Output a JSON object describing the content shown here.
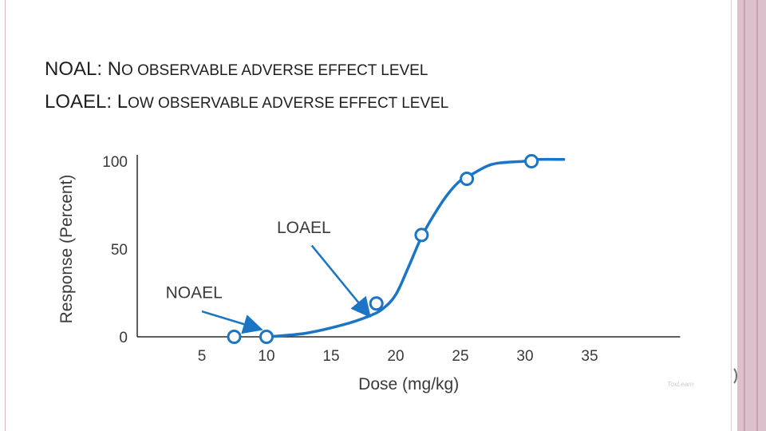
{
  "slide": {
    "line1": {
      "lead": "NOAL: N",
      "rest": "o observable adverse effect level"
    },
    "line2": {
      "lead": "LOAEL: L",
      "rest": "ow observable adverse effect level"
    }
  },
  "chart_data": {
    "type": "line",
    "title": "",
    "xlabel": "Dose (mg/kg)",
    "ylabel": "Response (Percent)",
    "xlim": [
      0,
      42
    ],
    "ylim": [
      0,
      100
    ],
    "x_ticks": [
      5,
      10,
      15,
      20,
      25,
      30,
      35
    ],
    "y_ticks": [
      0,
      50,
      100
    ],
    "curve": [
      [
        10,
        0
      ],
      [
        13,
        2
      ],
      [
        16,
        7
      ],
      [
        18,
        12
      ],
      [
        19,
        16
      ],
      [
        20,
        24
      ],
      [
        21,
        40
      ],
      [
        22,
        57
      ],
      [
        23,
        70
      ],
      [
        24,
        81
      ],
      [
        25,
        89
      ],
      [
        26,
        93
      ],
      [
        27,
        97
      ],
      [
        28,
        99
      ],
      [
        30,
        100
      ],
      [
        31,
        101
      ],
      [
        33,
        101
      ]
    ],
    "points": [
      {
        "x": 7.5,
        "y": 0
      },
      {
        "x": 10,
        "y": 0
      },
      {
        "x": 18.5,
        "y": 19
      },
      {
        "x": 22,
        "y": 58
      },
      {
        "x": 25.5,
        "y": 90
      },
      {
        "x": 30.5,
        "y": 100
      }
    ],
    "annotations": [
      {
        "text": "NOAEL",
        "target": {
          "x": 10,
          "y": 0
        }
      },
      {
        "text": "LOAEL",
        "target": {
          "x": 18.5,
          "y": 19
        }
      }
    ],
    "watermark": "ToxLearn",
    "grid": false,
    "series_color": "#1b75c4"
  }
}
